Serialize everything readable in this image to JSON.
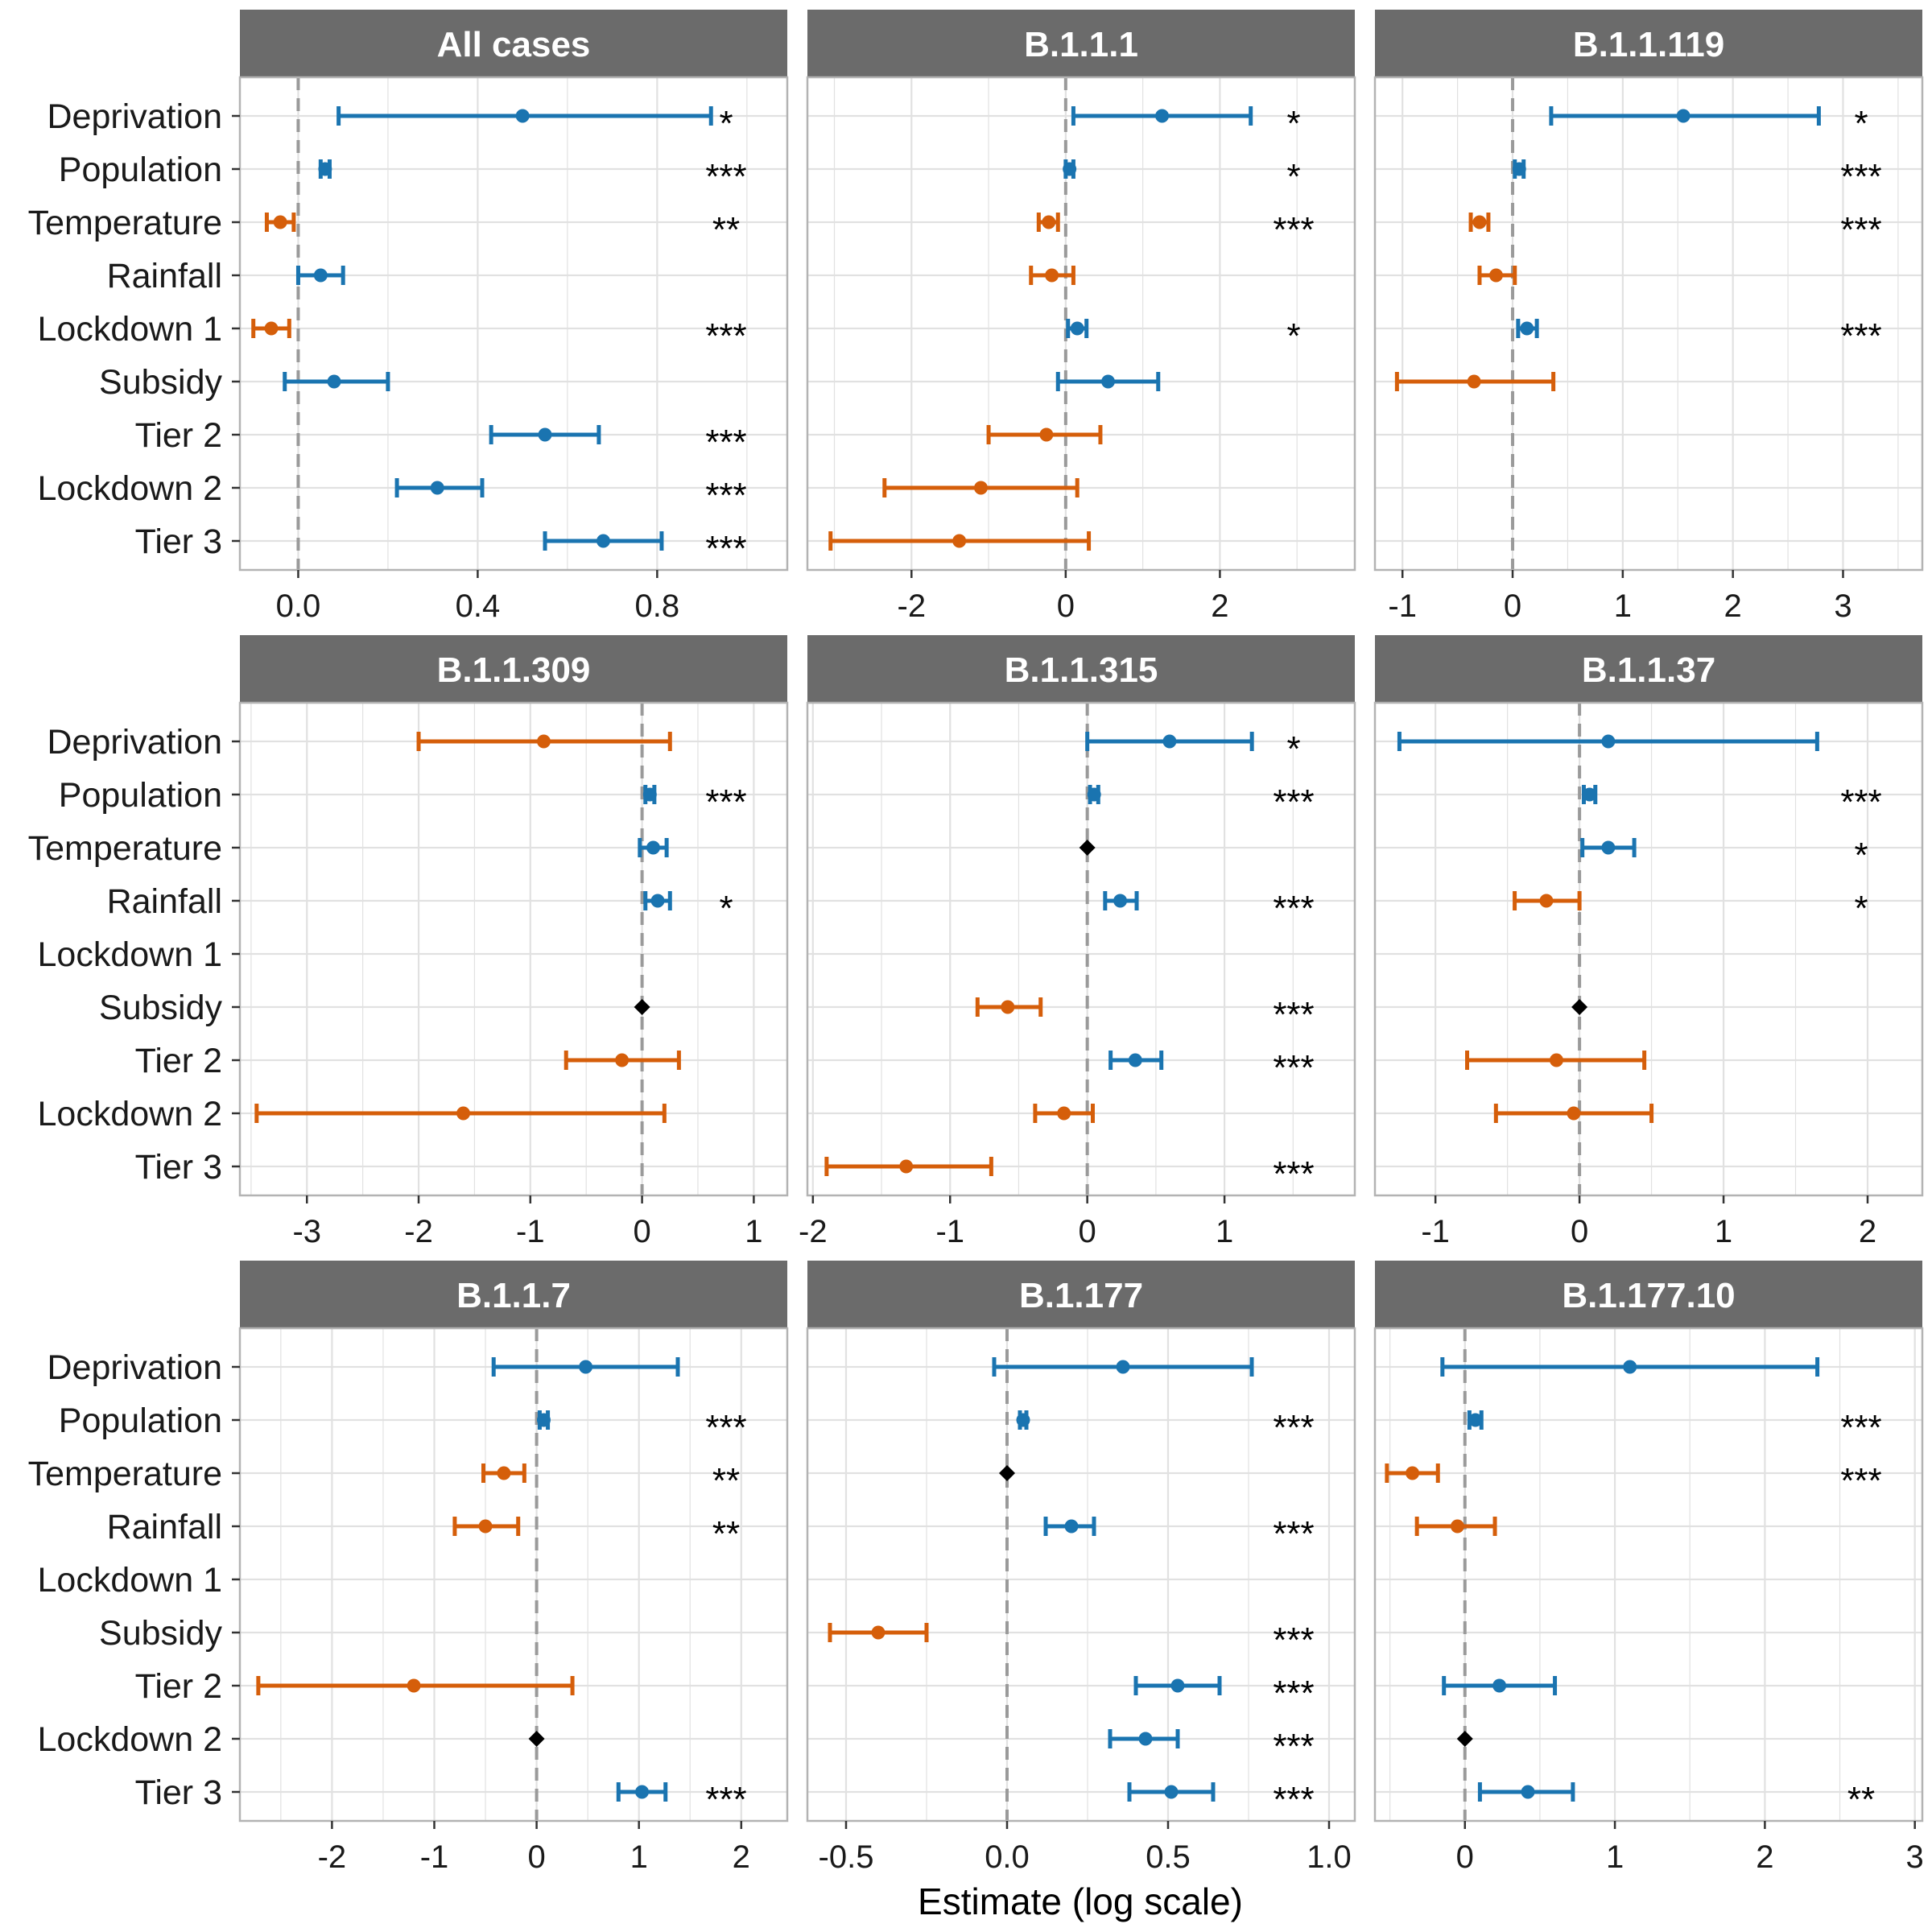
{
  "xlabel": "Estimate (log scale)",
  "colors": {
    "positive": "#1A74B0",
    "negative": "#D55E0A",
    "reference": "#000000",
    "strip": "#6B6B6B",
    "strip_text": "#FFFFFF",
    "grid": "#E1E1E1",
    "zero_line": "#9A9A9A",
    "panel_border": "#B3B3B3"
  },
  "row_labels": [
    "Deprivation",
    "Population",
    "Temperature",
    "Rainfall",
    "Lockdown 1",
    "Subsidy",
    "Tier 2",
    "Lockdown 2",
    "Tier 3"
  ],
  "chart_data": [
    {
      "type": "forest",
      "title": "All cases",
      "xlim": [
        -0.13,
        1.09
      ],
      "ticks": [
        {
          "v": 0,
          "label": "0.0"
        },
        {
          "v": 0.4,
          "label": "0.4"
        },
        {
          "v": 0.8,
          "label": "0.8"
        }
      ],
      "minor_ticks": [
        0.2,
        0.6,
        1.0
      ],
      "estimates": [
        {
          "row": "Deprivation",
          "est": 0.5,
          "lo": 0.09,
          "hi": 0.92,
          "sig": "*"
        },
        {
          "row": "Population",
          "est": 0.06,
          "lo": 0.05,
          "hi": 0.07,
          "sig": "***"
        },
        {
          "row": "Temperature",
          "est": -0.04,
          "lo": -0.07,
          "hi": -0.01,
          "sig": "**"
        },
        {
          "row": "Rainfall",
          "est": 0.05,
          "lo": 0.0,
          "hi": 0.1,
          "sig": ""
        },
        {
          "row": "Lockdown 1",
          "est": -0.06,
          "lo": -0.1,
          "hi": -0.02,
          "sig": "***"
        },
        {
          "row": "Subsidy",
          "est": 0.08,
          "lo": -0.03,
          "hi": 0.2,
          "sig": ""
        },
        {
          "row": "Tier 2",
          "est": 0.55,
          "lo": 0.43,
          "hi": 0.67,
          "sig": "***"
        },
        {
          "row": "Lockdown 2",
          "est": 0.31,
          "lo": 0.22,
          "hi": 0.41,
          "sig": "***"
        },
        {
          "row": "Tier 3",
          "est": 0.68,
          "lo": 0.55,
          "hi": 0.81,
          "sig": "***"
        }
      ]
    },
    {
      "type": "forest",
      "title": "B.1.1.1",
      "xlim": [
        -3.35,
        3.75
      ],
      "ticks": [
        {
          "v": -2,
          "label": "-2"
        },
        {
          "v": 0,
          "label": "0"
        },
        {
          "v": 2,
          "label": "2"
        }
      ],
      "minor_ticks": [
        -3,
        -1,
        1,
        3
      ],
      "estimates": [
        {
          "row": "Deprivation",
          "est": 1.25,
          "lo": 0.1,
          "hi": 2.4,
          "sig": "*"
        },
        {
          "row": "Population",
          "est": 0.05,
          "lo": 0.0,
          "hi": 0.1,
          "sig": "*"
        },
        {
          "row": "Temperature",
          "est": -0.22,
          "lo": -0.35,
          "hi": -0.1,
          "sig": "***"
        },
        {
          "row": "Rainfall",
          "est": -0.18,
          "lo": -0.45,
          "hi": 0.1,
          "sig": ""
        },
        {
          "row": "Lockdown 1",
          "est": 0.15,
          "lo": 0.03,
          "hi": 0.27,
          "sig": "*"
        },
        {
          "row": "Subsidy",
          "est": 0.55,
          "lo": -0.1,
          "hi": 1.2,
          "sig": ""
        },
        {
          "row": "Tier 2",
          "est": -0.25,
          "lo": -1.0,
          "hi": 0.45,
          "sig": ""
        },
        {
          "row": "Lockdown 2",
          "est": -1.1,
          "lo": -2.35,
          "hi": 0.15,
          "sig": ""
        },
        {
          "row": "Tier 3",
          "est": -1.38,
          "lo": -3.05,
          "hi": 0.3,
          "sig": ""
        }
      ]
    },
    {
      "type": "forest",
      "title": "B.1.1.119",
      "xlim": [
        -1.25,
        3.72
      ],
      "ticks": [
        {
          "v": -1,
          "label": "-1"
        },
        {
          "v": 0,
          "label": "0"
        },
        {
          "v": 1,
          "label": "1"
        },
        {
          "v": 2,
          "label": "2"
        },
        {
          "v": 3,
          "label": "3"
        }
      ],
      "minor_ticks": [
        -0.5,
        0.5,
        1.5,
        2.5,
        3.5
      ],
      "estimates": [
        {
          "row": "Deprivation",
          "est": 1.55,
          "lo": 0.35,
          "hi": 2.78,
          "sig": "*"
        },
        {
          "row": "Population",
          "est": 0.06,
          "lo": 0.02,
          "hi": 0.1,
          "sig": "***"
        },
        {
          "row": "Temperature",
          "est": -0.3,
          "lo": -0.38,
          "hi": -0.22,
          "sig": "***"
        },
        {
          "row": "Rainfall",
          "est": -0.15,
          "lo": -0.3,
          "hi": 0.02,
          "sig": ""
        },
        {
          "row": "Lockdown 1",
          "est": 0.13,
          "lo": 0.05,
          "hi": 0.22,
          "sig": "***"
        },
        {
          "row": "Subsidy",
          "est": -0.35,
          "lo": -1.05,
          "hi": 0.37,
          "sig": ""
        }
      ]
    },
    {
      "type": "forest",
      "title": "B.1.1.309",
      "xlim": [
        -3.6,
        1.3
      ],
      "ticks": [
        {
          "v": -3,
          "label": "-3"
        },
        {
          "v": -2,
          "label": "-2"
        },
        {
          "v": -1,
          "label": "-1"
        },
        {
          "v": 0,
          "label": "0"
        },
        {
          "v": 1,
          "label": "1"
        }
      ],
      "minor_ticks": [
        -3.5,
        -2.5,
        -1.5,
        -0.5,
        0.5
      ],
      "estimates": [
        {
          "row": "Deprivation",
          "est": -0.88,
          "lo": -2.0,
          "hi": 0.25,
          "sig": ""
        },
        {
          "row": "Population",
          "est": 0.07,
          "lo": 0.03,
          "hi": 0.11,
          "sig": "***"
        },
        {
          "row": "Temperature",
          "est": 0.1,
          "lo": -0.02,
          "hi": 0.22,
          "sig": ""
        },
        {
          "row": "Rainfall",
          "est": 0.14,
          "lo": 0.03,
          "hi": 0.25,
          "sig": "*"
        },
        {
          "row": "Subsidy",
          "est": 0.0,
          "ref": true
        },
        {
          "row": "Tier 2",
          "est": -0.18,
          "lo": -0.68,
          "hi": 0.33,
          "sig": ""
        },
        {
          "row": "Lockdown 2",
          "est": -1.6,
          "lo": -3.45,
          "hi": 0.2,
          "sig": ""
        }
      ]
    },
    {
      "type": "forest",
      "title": "B.1.1.315",
      "xlim": [
        -2.04,
        1.95
      ],
      "ticks": [
        {
          "v": -2,
          "label": "-2"
        },
        {
          "v": -1,
          "label": "-1"
        },
        {
          "v": 0,
          "label": "0"
        },
        {
          "v": 1,
          "label": "1"
        }
      ],
      "minor_ticks": [
        -1.5,
        -0.5,
        0.5,
        1.5
      ],
      "estimates": [
        {
          "row": "Deprivation",
          "est": 0.6,
          "lo": 0.0,
          "hi": 1.2,
          "sig": "*"
        },
        {
          "row": "Population",
          "est": 0.05,
          "lo": 0.02,
          "hi": 0.08,
          "sig": "***"
        },
        {
          "row": "Temperature",
          "est": 0.0,
          "ref": true
        },
        {
          "row": "Rainfall",
          "est": 0.24,
          "lo": 0.13,
          "hi": 0.36,
          "sig": "***"
        },
        {
          "row": "Subsidy",
          "est": -0.58,
          "lo": -0.8,
          "hi": -0.34,
          "sig": "***"
        },
        {
          "row": "Tier 2",
          "est": 0.35,
          "lo": 0.17,
          "hi": 0.54,
          "sig": "***"
        },
        {
          "row": "Lockdown 2",
          "est": -0.17,
          "lo": -0.38,
          "hi": 0.04,
          "sig": ""
        },
        {
          "row": "Tier 3",
          "est": -1.32,
          "lo": -1.9,
          "hi": -0.7,
          "sig": "***"
        }
      ]
    },
    {
      "type": "forest",
      "title": "B.1.1.37",
      "xlim": [
        -1.42,
        2.38
      ],
      "ticks": [
        {
          "v": -1,
          "label": "-1"
        },
        {
          "v": 0,
          "label": "0"
        },
        {
          "v": 1,
          "label": "1"
        },
        {
          "v": 2,
          "label": "2"
        }
      ],
      "minor_ticks": [
        -0.5,
        0.5,
        1.5
      ],
      "estimates": [
        {
          "row": "Deprivation",
          "est": 0.2,
          "lo": -1.25,
          "hi": 1.65,
          "sig": ""
        },
        {
          "row": "Population",
          "est": 0.07,
          "lo": 0.03,
          "hi": 0.11,
          "sig": "***"
        },
        {
          "row": "Temperature",
          "est": 0.2,
          "lo": 0.02,
          "hi": 0.38,
          "sig": "*"
        },
        {
          "row": "Rainfall",
          "est": -0.23,
          "lo": -0.45,
          "hi": 0.0,
          "sig": "*"
        },
        {
          "row": "Subsidy",
          "est": 0.0,
          "ref": true
        },
        {
          "row": "Tier 2",
          "est": -0.16,
          "lo": -0.78,
          "hi": 0.45,
          "sig": ""
        },
        {
          "row": "Lockdown 2",
          "est": -0.04,
          "lo": -0.58,
          "hi": 0.5,
          "sig": ""
        }
      ]
    },
    {
      "type": "forest",
      "title": "B.1.1.7",
      "xlim": [
        -2.9,
        2.45
      ],
      "ticks": [
        {
          "v": -2,
          "label": "-2"
        },
        {
          "v": -1,
          "label": "-1"
        },
        {
          "v": 0,
          "label": "0"
        },
        {
          "v": 1,
          "label": "1"
        },
        {
          "v": 2,
          "label": "2"
        }
      ],
      "minor_ticks": [
        -2.5,
        -1.5,
        -0.5,
        0.5,
        1.5
      ],
      "estimates": [
        {
          "row": "Deprivation",
          "est": 0.48,
          "lo": -0.42,
          "hi": 1.38,
          "sig": ""
        },
        {
          "row": "Population",
          "est": 0.07,
          "lo": 0.03,
          "hi": 0.11,
          "sig": "***"
        },
        {
          "row": "Temperature",
          "est": -0.32,
          "lo": -0.52,
          "hi": -0.12,
          "sig": "**"
        },
        {
          "row": "Rainfall",
          "est": -0.5,
          "lo": -0.8,
          "hi": -0.18,
          "sig": "**"
        },
        {
          "row": "Tier 2",
          "est": -1.2,
          "lo": -2.72,
          "hi": 0.35,
          "sig": ""
        },
        {
          "row": "Lockdown 2",
          "est": 0.0,
          "ref": true
        },
        {
          "row": "Tier 3",
          "est": 1.03,
          "lo": 0.8,
          "hi": 1.26,
          "sig": "***"
        }
      ]
    },
    {
      "type": "forest",
      "title": "B.1.177",
      "xlim": [
        -0.62,
        1.08
      ],
      "ticks": [
        {
          "v": -0.5,
          "label": "-0.5"
        },
        {
          "v": 0,
          "label": "0.0"
        },
        {
          "v": 0.5,
          "label": "0.5"
        },
        {
          "v": 1,
          "label": "1.0"
        }
      ],
      "minor_ticks": [
        -0.25,
        0.25,
        0.75
      ],
      "estimates": [
        {
          "row": "Deprivation",
          "est": 0.36,
          "lo": -0.04,
          "hi": 0.76,
          "sig": ""
        },
        {
          "row": "Population",
          "est": 0.05,
          "lo": 0.04,
          "hi": 0.06,
          "sig": "***"
        },
        {
          "row": "Temperature",
          "est": 0.0,
          "ref": true
        },
        {
          "row": "Rainfall",
          "est": 0.2,
          "lo": 0.12,
          "hi": 0.27,
          "sig": "***"
        },
        {
          "row": "Subsidy",
          "est": -0.4,
          "lo": -0.55,
          "hi": -0.25,
          "sig": "***"
        },
        {
          "row": "Tier 2",
          "est": 0.53,
          "lo": 0.4,
          "hi": 0.66,
          "sig": "***"
        },
        {
          "row": "Lockdown 2",
          "est": 0.43,
          "lo": 0.32,
          "hi": 0.53,
          "sig": "***"
        },
        {
          "row": "Tier 3",
          "est": 0.51,
          "lo": 0.38,
          "hi": 0.64,
          "sig": "***"
        }
      ]
    },
    {
      "type": "forest",
      "title": "B.1.177.10",
      "xlim": [
        -0.6,
        3.05
      ],
      "ticks": [
        {
          "v": 0,
          "label": "0"
        },
        {
          "v": 1,
          "label": "1"
        },
        {
          "v": 2,
          "label": "2"
        },
        {
          "v": 3,
          "label": "3"
        }
      ],
      "minor_ticks": [
        -0.5,
        0.5,
        1.5,
        2.5
      ],
      "estimates": [
        {
          "row": "Deprivation",
          "est": 1.1,
          "lo": -0.15,
          "hi": 2.35,
          "sig": ""
        },
        {
          "row": "Population",
          "est": 0.07,
          "lo": 0.03,
          "hi": 0.11,
          "sig": "***"
        },
        {
          "row": "Temperature",
          "est": -0.35,
          "lo": -0.52,
          "hi": -0.18,
          "sig": "***"
        },
        {
          "row": "Rainfall",
          "est": -0.05,
          "lo": -0.32,
          "hi": 0.2,
          "sig": ""
        },
        {
          "row": "Tier 2",
          "est": 0.23,
          "lo": -0.14,
          "hi": 0.6,
          "sig": ""
        },
        {
          "row": "Lockdown 2",
          "est": 0.0,
          "ref": true
        },
        {
          "row": "Tier 3",
          "est": 0.42,
          "lo": 0.1,
          "hi": 0.72,
          "sig": "**"
        }
      ]
    }
  ]
}
